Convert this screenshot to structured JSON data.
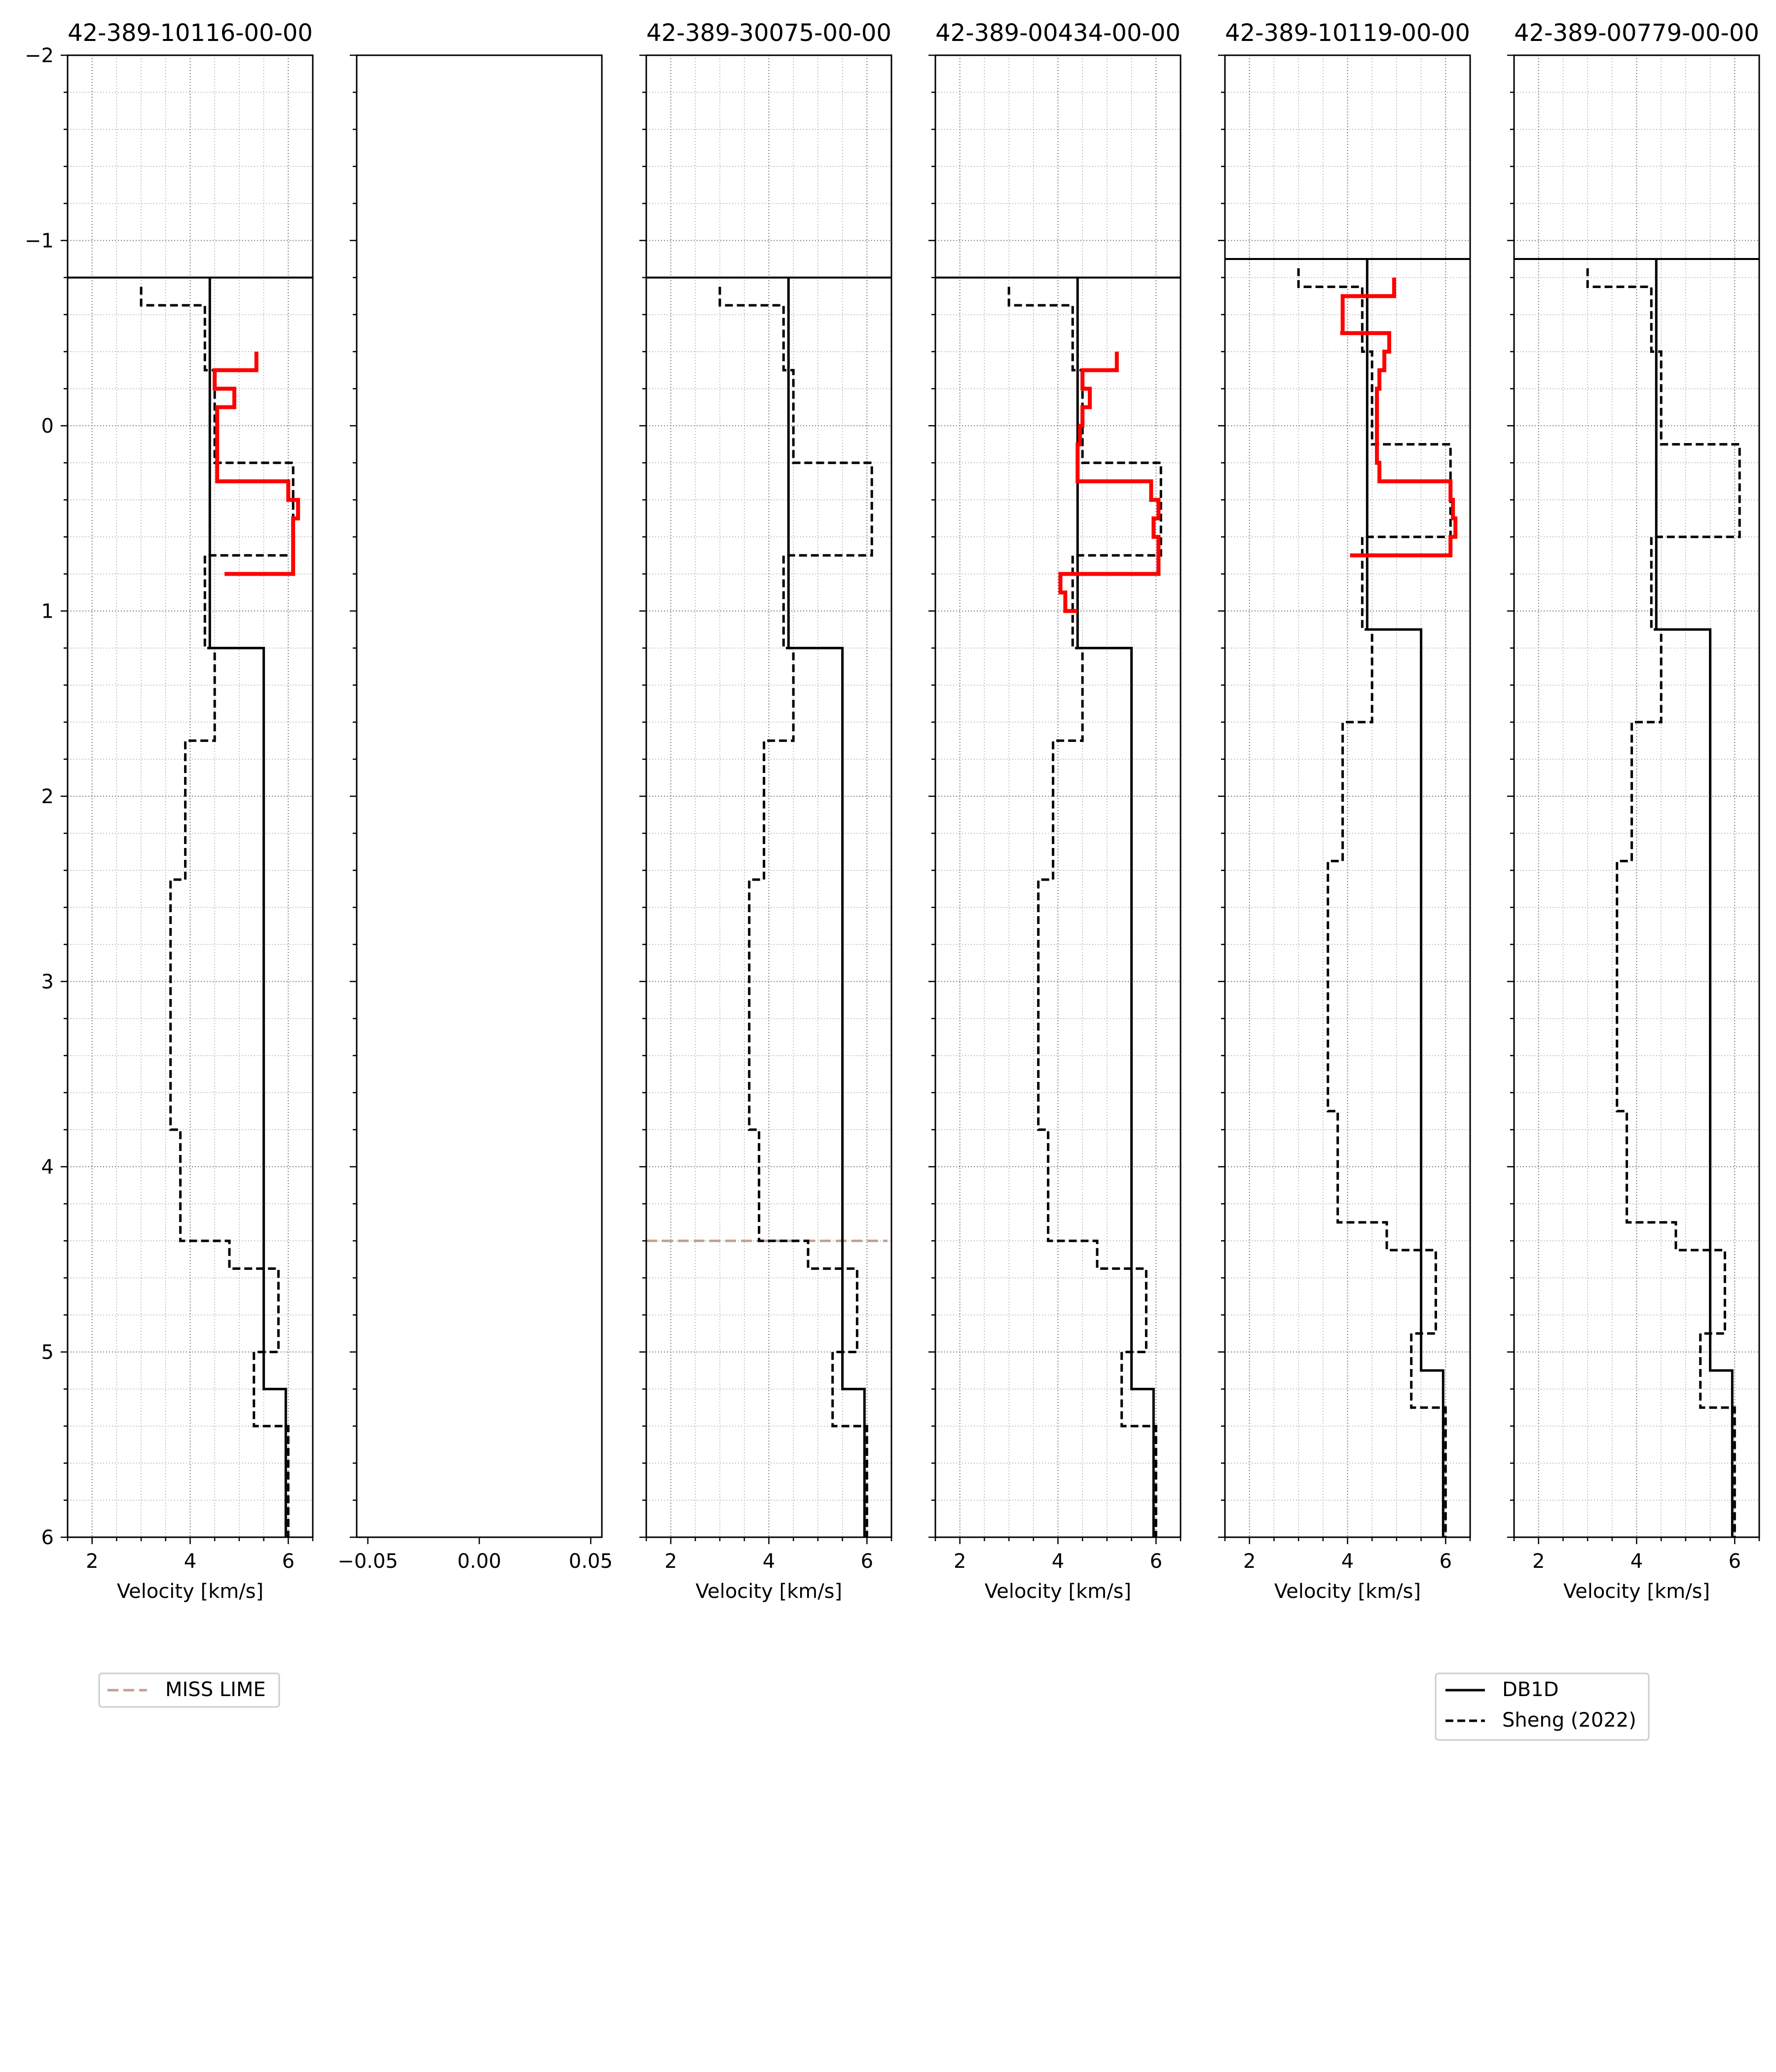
{
  "figure": {
    "legend_left": {
      "entries": [
        {
          "label": "MISS LIME",
          "color": "#c4a08f",
          "dash": "dashed"
        }
      ]
    },
    "legend_right": {
      "entries": [
        {
          "label": "DB1D",
          "color": "#000000",
          "dash": "solid"
        },
        {
          "label": "Sheng (2022)",
          "color": "#000000",
          "dash": "dashed"
        }
      ]
    }
  },
  "chart_data": [
    {
      "type": "line",
      "title": "42-389-10116-00-00",
      "xlabel": "Velocity [km/s]",
      "ylabel": "",
      "xlim": [
        1.5,
        6.5
      ],
      "ylim": [
        6,
        -2
      ],
      "xticks": [
        "2",
        "4",
        "6"
      ],
      "yticks": [
        "−2",
        "−1",
        "0",
        "1",
        "2",
        "3",
        "4",
        "5",
        "6"
      ],
      "grid": true,
      "series": [
        {
          "name": "DB1D",
          "style": "solid",
          "color": "#000000",
          "x": [
            4.4,
            4.4,
            5.5,
            5.5,
            5.95,
            5.95
          ],
          "y": [
            -0.8,
            1.2,
            1.2,
            5.2,
            5.2,
            6.0
          ]
        },
        {
          "name": "Sheng (2022)",
          "style": "dashed",
          "color": "#000000",
          "x": [
            3.0,
            3.0,
            4.3,
            4.3,
            4.5,
            4.5,
            6.1,
            6.1,
            4.3,
            4.3,
            4.5,
            4.5,
            3.9,
            3.9,
            3.6,
            3.6,
            3.8,
            3.8,
            4.8,
            4.8,
            5.8,
            5.8,
            5.3,
            5.3,
            6.0,
            6.0
          ],
          "y": [
            -0.75,
            -0.65,
            -0.65,
            -0.3,
            -0.3,
            0.2,
            0.2,
            0.7,
            0.7,
            1.2,
            1.2,
            1.7,
            1.7,
            2.45,
            2.45,
            3.8,
            3.8,
            4.4,
            4.4,
            4.55,
            4.55,
            5.0,
            5.0,
            5.4,
            5.4,
            6.0
          ]
        },
        {
          "name": "",
          "style": "solid",
          "color": "#ff0000",
          "width": "thick",
          "x": [
            5.35,
            5.35,
            4.5,
            4.5,
            4.9,
            4.9,
            4.55,
            4.55,
            6.0,
            6.0,
            6.2,
            6.2,
            6.1,
            6.1,
            6.1,
            6.1,
            4.7
          ],
          "y": [
            -0.4,
            -0.3,
            -0.3,
            -0.2,
            -0.2,
            -0.1,
            -0.1,
            0.3,
            0.3,
            0.4,
            0.4,
            0.5,
            0.5,
            0.6,
            0.6,
            0.8,
            0.8
          ]
        }
      ],
      "hlines": [
        {
          "y": -0.8,
          "style": "solid",
          "color": "#000000"
        }
      ]
    },
    {
      "type": "line",
      "title": "",
      "xlabel": "",
      "ylabel": "",
      "xlim": [
        -0.055,
        0.055
      ],
      "ylim": [
        6,
        -2
      ],
      "xticks": [
        "−0.05",
        "0.00",
        "0.05"
      ],
      "yticks": [],
      "grid": false,
      "series": []
    },
    {
      "type": "line",
      "title": "42-389-30075-00-00",
      "xlabel": "Velocity [km/s]",
      "ylabel": "",
      "xlim": [
        1.5,
        6.5
      ],
      "ylim": [
        6,
        -2
      ],
      "xticks": [
        "2",
        "4",
        "6"
      ],
      "yticks": [],
      "grid": true,
      "series": [
        {
          "name": "DB1D",
          "style": "solid",
          "color": "#000000",
          "x": [
            4.4,
            4.4,
            5.5,
            5.5,
            5.95,
            5.95
          ],
          "y": [
            -0.8,
            1.2,
            1.2,
            5.2,
            5.2,
            6.0
          ]
        },
        {
          "name": "Sheng (2022)",
          "style": "dashed",
          "color": "#000000",
          "x": [
            3.0,
            3.0,
            4.3,
            4.3,
            4.5,
            4.5,
            6.1,
            6.1,
            4.3,
            4.3,
            4.5,
            4.5,
            3.9,
            3.9,
            3.6,
            3.6,
            3.8,
            3.8,
            4.8,
            4.8,
            5.8,
            5.8,
            5.3,
            5.3,
            6.0,
            6.0
          ],
          "y": [
            -0.75,
            -0.65,
            -0.65,
            -0.3,
            -0.3,
            0.2,
            0.2,
            0.7,
            0.7,
            1.2,
            1.2,
            1.7,
            1.7,
            2.45,
            2.45,
            3.8,
            3.8,
            4.4,
            4.4,
            4.55,
            4.55,
            5.0,
            5.0,
            5.4,
            5.4,
            6.0
          ]
        }
      ],
      "hlines": [
        {
          "y": -0.8,
          "style": "solid",
          "color": "#000000"
        },
        {
          "y": 4.4,
          "style": "dashed",
          "color": "#c4a08f",
          "name": "MISS LIME"
        }
      ]
    },
    {
      "type": "line",
      "title": "42-389-00434-00-00",
      "xlabel": "Velocity [km/s]",
      "ylabel": "",
      "xlim": [
        1.5,
        6.5
      ],
      "ylim": [
        6,
        -2
      ],
      "xticks": [
        "2",
        "4",
        "6"
      ],
      "yticks": [],
      "grid": true,
      "series": [
        {
          "name": "DB1D",
          "style": "solid",
          "color": "#000000",
          "x": [
            4.4,
            4.4,
            5.5,
            5.5,
            5.95,
            5.95
          ],
          "y": [
            -0.8,
            1.2,
            1.2,
            5.2,
            5.2,
            6.0
          ]
        },
        {
          "name": "Sheng (2022)",
          "style": "dashed",
          "color": "#000000",
          "x": [
            3.0,
            3.0,
            4.3,
            4.3,
            4.5,
            4.5,
            6.1,
            6.1,
            4.3,
            4.3,
            4.5,
            4.5,
            3.9,
            3.9,
            3.6,
            3.6,
            3.8,
            3.8,
            4.8,
            4.8,
            5.8,
            5.8,
            5.3,
            5.3,
            6.0,
            6.0
          ],
          "y": [
            -0.75,
            -0.65,
            -0.65,
            -0.3,
            -0.3,
            0.2,
            0.2,
            0.7,
            0.7,
            1.2,
            1.2,
            1.7,
            1.7,
            2.45,
            2.45,
            3.8,
            3.8,
            4.4,
            4.4,
            4.55,
            4.55,
            5.0,
            5.0,
            5.4,
            5.4,
            6.0
          ]
        },
        {
          "name": "",
          "style": "solid",
          "color": "#ff0000",
          "width": "thick",
          "x": [
            5.2,
            5.2,
            4.5,
            4.5,
            4.65,
            4.65,
            4.5,
            4.5,
            4.45,
            4.45,
            4.4,
            4.4,
            5.9,
            5.9,
            6.05,
            6.05,
            5.95,
            5.95,
            6.05,
            6.05,
            4.05,
            4.05,
            4.15,
            4.15,
            4.4
          ],
          "y": [
            -0.4,
            -0.3,
            -0.3,
            -0.2,
            -0.2,
            -0.1,
            -0.1,
            0.0,
            0.0,
            0.1,
            0.1,
            0.3,
            0.3,
            0.4,
            0.4,
            0.5,
            0.5,
            0.6,
            0.6,
            0.8,
            0.8,
            0.9,
            0.9,
            1.0,
            1.0
          ]
        }
      ],
      "hlines": [
        {
          "y": -0.8,
          "style": "solid",
          "color": "#000000"
        }
      ]
    },
    {
      "type": "line",
      "title": "42-389-10119-00-00",
      "xlabel": "Velocity [km/s]",
      "ylabel": "",
      "xlim": [
        1.5,
        6.5
      ],
      "ylim": [
        6,
        -2
      ],
      "xticks": [
        "2",
        "4",
        "6"
      ],
      "yticks": [],
      "grid": true,
      "series": [
        {
          "name": "DB1D",
          "style": "solid",
          "color": "#000000",
          "x": [
            4.4,
            4.4,
            5.5,
            5.5,
            5.95,
            5.95
          ],
          "y": [
            -0.9,
            1.1,
            1.1,
            5.1,
            5.1,
            6.0
          ]
        },
        {
          "name": "Sheng (2022)",
          "style": "dashed",
          "color": "#000000",
          "x": [
            3.0,
            3.0,
            4.3,
            4.3,
            4.5,
            4.5,
            6.1,
            6.1,
            4.3,
            4.3,
            4.5,
            4.5,
            3.9,
            3.9,
            3.6,
            3.6,
            3.8,
            3.8,
            4.8,
            4.8,
            5.8,
            5.8,
            5.3,
            5.3,
            6.0,
            6.0
          ],
          "y": [
            -0.85,
            -0.75,
            -0.75,
            -0.4,
            -0.4,
            0.1,
            0.1,
            0.6,
            0.6,
            1.1,
            1.1,
            1.6,
            1.6,
            2.35,
            2.35,
            3.7,
            3.7,
            4.3,
            4.3,
            4.45,
            4.45,
            4.9,
            4.9,
            5.3,
            5.3,
            6.0
          ]
        },
        {
          "name": "",
          "style": "solid",
          "color": "#ff0000",
          "width": "thick",
          "x": [
            4.95,
            4.95,
            3.9,
            3.9,
            3.85,
            3.85,
            4.85,
            4.85,
            4.75,
            4.75,
            4.65,
            4.65,
            4.6,
            4.6,
            4.65,
            4.65,
            6.1,
            6.1,
            6.15,
            6.15,
            6.2,
            6.2,
            6.1,
            6.1,
            4.05
          ],
          "y": [
            -0.8,
            -0.7,
            -0.7,
            -0.5,
            -0.5,
            -0.5,
            -0.5,
            -0.4,
            -0.4,
            -0.3,
            -0.3,
            -0.2,
            -0.2,
            0.2,
            0.2,
            0.3,
            0.3,
            0.4,
            0.4,
            0.5,
            0.5,
            0.6,
            0.6,
            0.7,
            0.7
          ]
        }
      ],
      "hlines": [
        {
          "y": -0.9,
          "style": "solid",
          "color": "#000000"
        }
      ]
    },
    {
      "type": "line",
      "title": "42-389-00779-00-00",
      "xlabel": "Velocity [km/s]",
      "ylabel": "",
      "xlim": [
        1.5,
        6.5
      ],
      "ylim": [
        6,
        -2
      ],
      "xticks": [
        "2",
        "4",
        "6"
      ],
      "yticks": [],
      "grid": true,
      "series": [
        {
          "name": "DB1D",
          "style": "solid",
          "color": "#000000",
          "x": [
            4.4,
            4.4,
            5.5,
            5.5,
            5.95,
            5.95
          ],
          "y": [
            -0.9,
            1.1,
            1.1,
            5.1,
            5.1,
            6.0
          ]
        },
        {
          "name": "Sheng (2022)",
          "style": "dashed",
          "color": "#000000",
          "x": [
            3.0,
            3.0,
            4.3,
            4.3,
            4.5,
            4.5,
            6.1,
            6.1,
            4.3,
            4.3,
            4.5,
            4.5,
            3.9,
            3.9,
            3.6,
            3.6,
            3.8,
            3.8,
            4.8,
            4.8,
            5.8,
            5.8,
            5.3,
            5.3,
            6.0,
            6.0
          ],
          "y": [
            -0.85,
            -0.75,
            -0.75,
            -0.4,
            -0.4,
            0.1,
            0.1,
            0.6,
            0.6,
            1.1,
            1.1,
            1.6,
            1.6,
            2.35,
            2.35,
            3.7,
            3.7,
            4.3,
            4.3,
            4.45,
            4.45,
            4.9,
            4.9,
            5.3,
            5.3,
            6.0
          ]
        }
      ],
      "hlines": [
        {
          "y": -0.9,
          "style": "solid",
          "color": "#000000"
        }
      ]
    }
  ]
}
